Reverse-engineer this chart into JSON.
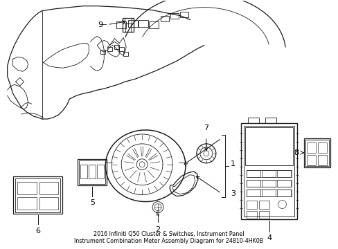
{
  "title": "2016 Infiniti Q50 Cluster & Switches, Instrument Panel\nInstrument Combination Meter Assembly Diagram for 24810-4HK0B",
  "bg_color": "#ffffff",
  "line_color": "#1a1a1a",
  "fig_width": 4.89,
  "fig_height": 3.6,
  "dpi": 100,
  "title_fontsize": 5.8,
  "label_fontsize": 8.0,
  "lw_main": 0.9,
  "lw_detail": 0.6,
  "lw_fine": 0.45
}
